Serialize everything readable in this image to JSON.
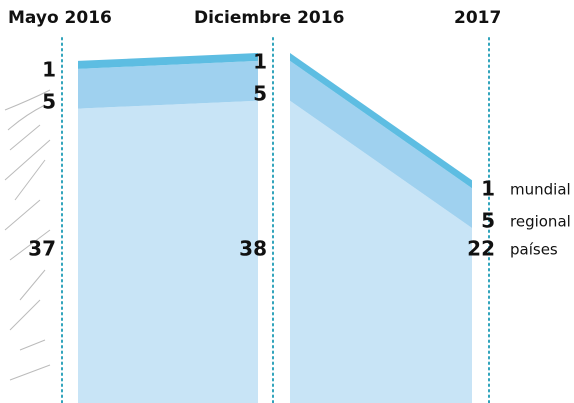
{
  "chart_data": {
    "type": "area",
    "categories": [
      "Mayo 2016",
      "Diciembre 2016",
      "2017"
    ],
    "series": [
      {
        "name": "países",
        "color": "#c8e4f6",
        "values": [
          37,
          38,
          22
        ]
      },
      {
        "name": "regional",
        "color": "#9fd1ef",
        "values": [
          5,
          5,
          5
        ]
      },
      {
        "name": "mundial",
        "color": "#5dbde2",
        "values": [
          1,
          1,
          1
        ]
      }
    ],
    "ylim": [
      0,
      45
    ]
  }
}
